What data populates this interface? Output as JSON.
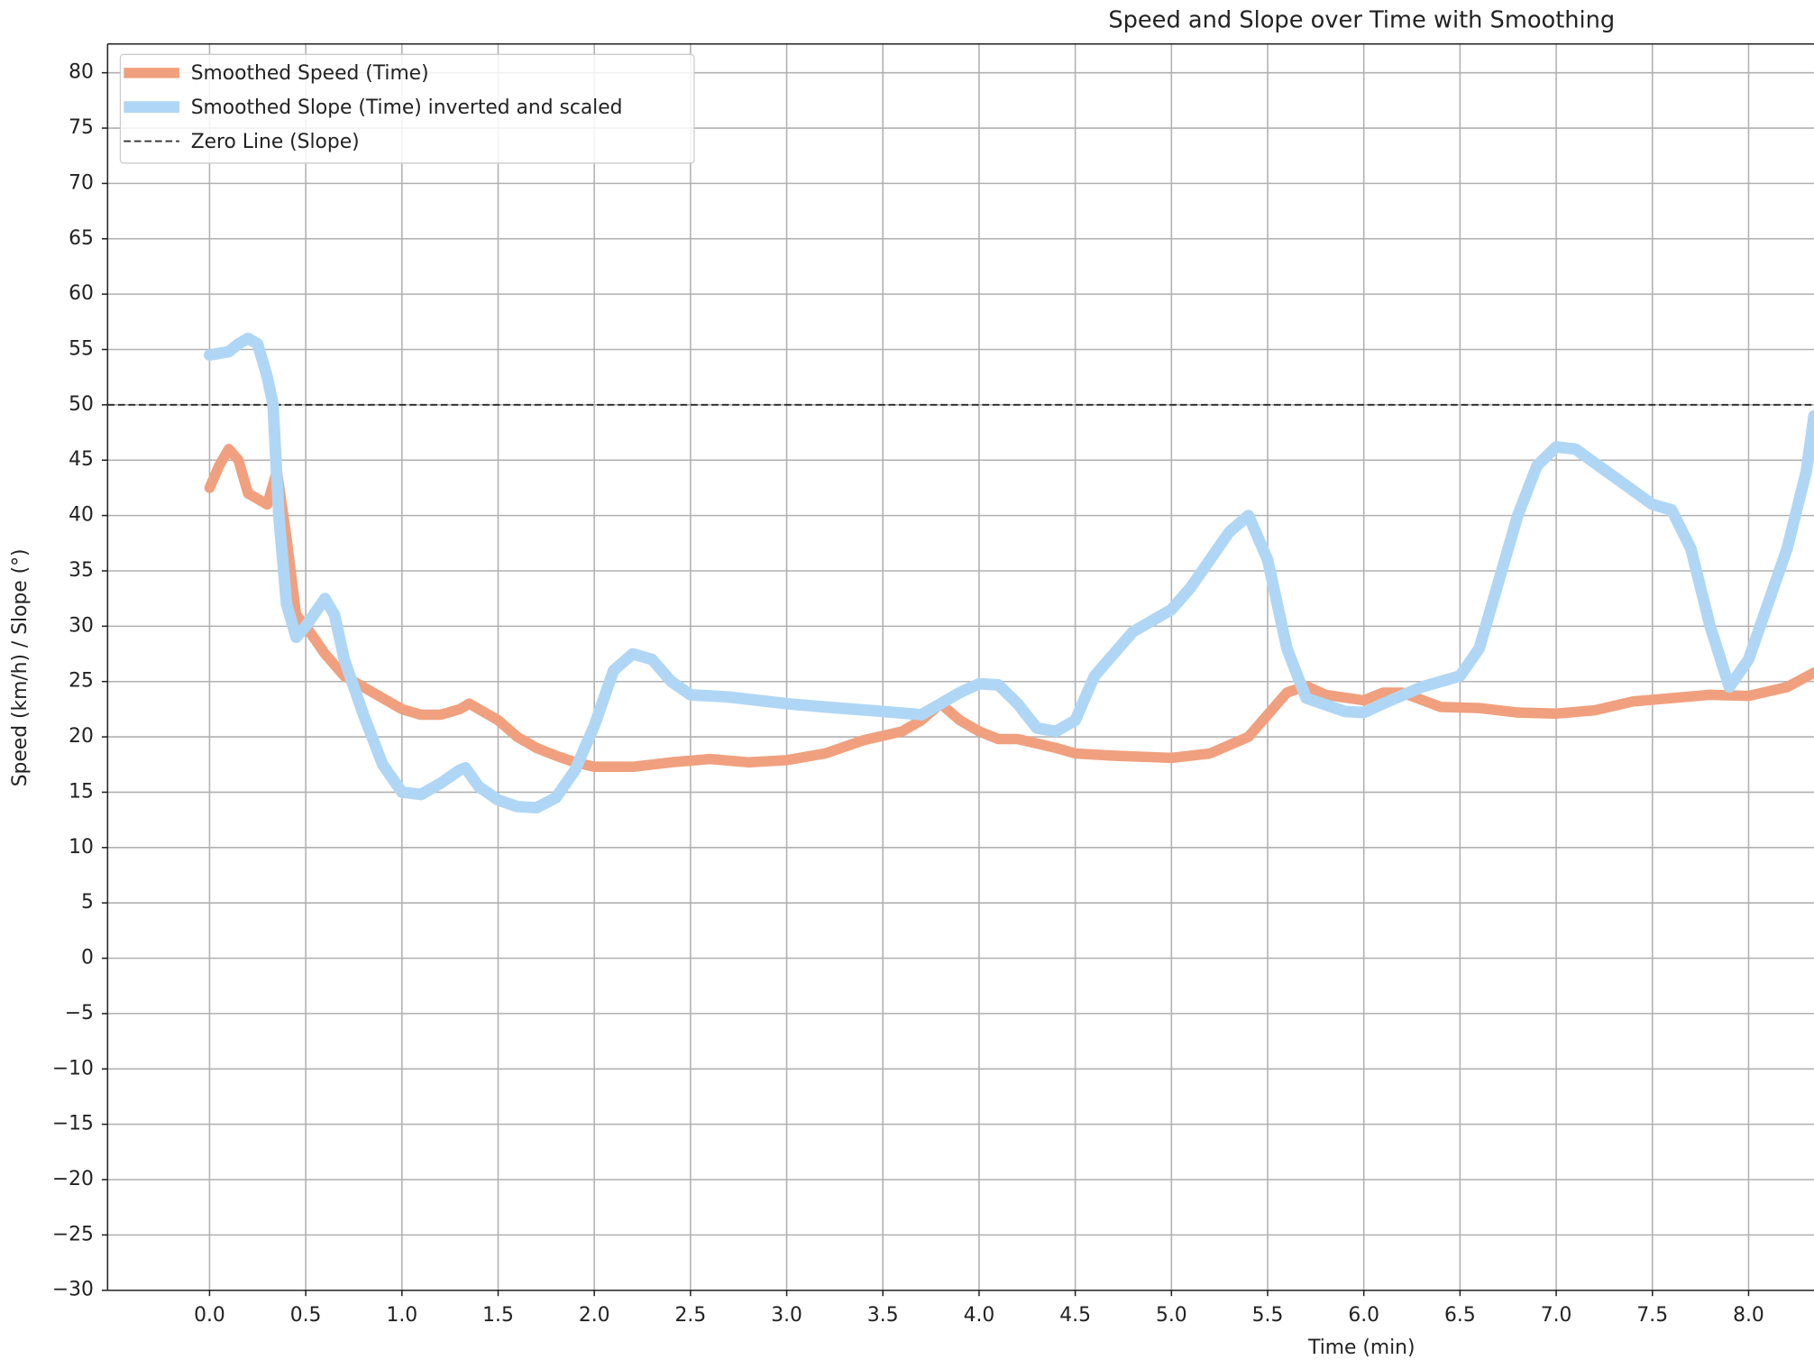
{
  "chart_data": {
    "type": "line",
    "title": "Speed and Slope over Time with Smoothing",
    "x_label": "Time (min)",
    "y_label": "Speed (km/h) / Slope (°)",
    "xlim": [
      -0.53,
      8.34
    ],
    "ylim": [
      -30,
      82.6
    ],
    "grid": true,
    "legend": "upper left",
    "xticks": [
      {
        "value": 0,
        "label": "0.0"
      },
      0.5,
      {
        "value": 1,
        "label": "1.0"
      },
      1.5,
      {
        "value": 2,
        "label": "2.0"
      },
      2.5,
      {
        "value": 3,
        "label": "3.0"
      },
      3.5,
      {
        "value": 4,
        "label": "4.0"
      },
      4.5,
      {
        "value": 5,
        "label": "5.0"
      },
      5.5,
      {
        "value": 6,
        "label": "6.0"
      },
      6.5,
      {
        "value": 7,
        "label": "7.0"
      },
      7.5,
      {
        "value": 8,
        "label": "8.0"
      }
    ],
    "yticks": [
      {
        "value": -30,
        "label": "−30"
      },
      {
        "value": -25,
        "label": "−25"
      },
      {
        "value": -20,
        "label": "−20"
      },
      {
        "value": -15,
        "label": "−15"
      },
      {
        "value": -10,
        "label": "−10"
      },
      {
        "value": -5,
        "label": "−5"
      },
      0,
      5,
      10,
      15,
      20,
      25,
      30,
      35,
      40,
      45,
      50,
      55,
      60,
      65,
      70,
      75,
      80
    ],
    "series": [
      {
        "name": "Smoothed Speed (Time)",
        "color": "#f0a07e",
        "width": 9,
        "x": [
          0.0,
          0.05,
          0.1,
          0.15,
          0.2,
          0.25,
          0.3,
          0.35,
          0.4,
          0.45,
          0.5,
          0.6,
          0.7,
          0.8,
          0.9,
          1.0,
          1.1,
          1.2,
          1.3,
          1.35,
          1.4,
          1.5,
          1.6,
          1.7,
          1.8,
          1.9,
          2.0,
          2.2,
          2.4,
          2.6,
          2.8,
          3.0,
          3.2,
          3.4,
          3.6,
          3.7,
          3.8,
          3.9,
          4.0,
          4.1,
          4.2,
          4.4,
          4.5,
          4.7,
          5.0,
          5.2,
          5.4,
          5.5,
          5.6,
          5.7,
          5.8,
          6.0,
          6.1,
          6.2,
          6.4,
          6.6,
          6.8,
          7.0,
          7.2,
          7.4,
          7.6,
          7.8,
          8.0,
          8.2,
          8.34
        ],
        "values": [
          42.5,
          44.5,
          46,
          45,
          42,
          41.5,
          41,
          44,
          38,
          31,
          30,
          27.5,
          25.5,
          24.5,
          23.5,
          22.5,
          22,
          22,
          22.5,
          23,
          22.5,
          21.5,
          20,
          19,
          18.3,
          17.7,
          17.3,
          17.3,
          17.7,
          18,
          17.7,
          17.9,
          18.5,
          19.7,
          20.5,
          21.5,
          23,
          21.5,
          20.5,
          19.8,
          19.8,
          19,
          18.5,
          18.3,
          18.1,
          18.5,
          20,
          22,
          24,
          24.6,
          23.8,
          23.3,
          24,
          24,
          22.7,
          22.6,
          22.2,
          22.1,
          22.4,
          23.2,
          23.5,
          23.8,
          23.7,
          24.5,
          25.8
        ]
      },
      {
        "name": "Smoothed Slope (Time) inverted and scaled",
        "color": "#b0d6f5",
        "width": 10,
        "x": [
          0.0,
          0.1,
          0.15,
          0.2,
          0.25,
          0.3,
          0.33,
          0.36,
          0.4,
          0.45,
          0.5,
          0.6,
          0.65,
          0.7,
          0.8,
          0.9,
          1.0,
          1.1,
          1.2,
          1.3,
          1.33,
          1.4,
          1.5,
          1.6,
          1.7,
          1.8,
          1.9,
          2.0,
          2.1,
          2.2,
          2.3,
          2.4,
          2.5,
          2.7,
          3.0,
          3.2,
          3.5,
          3.7,
          3.8,
          3.9,
          4.0,
          4.1,
          4.2,
          4.3,
          4.4,
          4.5,
          4.6,
          4.8,
          5.0,
          5.1,
          5.3,
          5.4,
          5.5,
          5.6,
          5.7,
          5.9,
          6.0,
          6.1,
          6.3,
          6.5,
          6.6,
          6.7,
          6.8,
          6.9,
          7.0,
          7.1,
          7.3,
          7.5,
          7.6,
          7.7,
          7.8,
          7.9,
          8.0,
          8.2,
          8.3,
          8.34
        ],
        "values": [
          54.5,
          54.8,
          55.5,
          56,
          55.5,
          52.5,
          50,
          40,
          32,
          29,
          30,
          32.5,
          31,
          27,
          22,
          17.5,
          15,
          14.8,
          15.8,
          17,
          17.2,
          15.5,
          14.3,
          13.7,
          13.6,
          14.5,
          17,
          21,
          26,
          27.5,
          27,
          25,
          23.8,
          23.6,
          23,
          22.7,
          22.3,
          22,
          23,
          24,
          24.8,
          24.7,
          23,
          20.8,
          20.5,
          21.5,
          25.5,
          29.5,
          31.5,
          33.5,
          38.5,
          40,
          36,
          28,
          23.5,
          22.3,
          22.2,
          23,
          24.5,
          25.5,
          28,
          34,
          40,
          44.5,
          46.2,
          46,
          43.5,
          41,
          40.5,
          37,
          30,
          24.5,
          27,
          37,
          44,
          49
        ]
      }
    ],
    "reference_line": {
      "name": "Zero Line (Slope)",
      "y": 50,
      "color": "#333333",
      "dashed": true
    }
  }
}
